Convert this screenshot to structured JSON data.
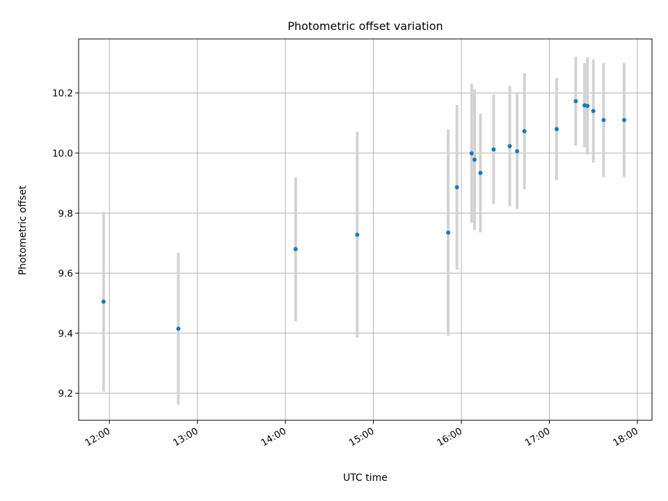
{
  "chart_data": {
    "type": "scatter",
    "title": "Photometric offset variation",
    "xlabel": "UTC time",
    "ylabel": "Photometric offset",
    "x_ticks": [
      "12:00",
      "13:00",
      "14:00",
      "15:00",
      "16:00",
      "17:00",
      "18:00"
    ],
    "y_ticks": [
      "9.2",
      "9.4",
      "9.6",
      "9.8",
      "10.0",
      "10.2"
    ],
    "xlim": [
      "11:39",
      "18:10"
    ],
    "ylim": [
      9.11,
      10.38
    ],
    "grid": true,
    "point_color": "#1f77b4",
    "errorbar_color": "#d3d3d3",
    "points": [
      {
        "x": "11:56",
        "y": 9.505,
        "err": 0.3
      },
      {
        "x": "12:47",
        "y": 9.415,
        "err": 0.253
      },
      {
        "x": "14:07",
        "y": 9.68,
        "err": 0.24
      },
      {
        "x": "14:49",
        "y": 9.728,
        "err": 0.343
      },
      {
        "x": "15:51",
        "y": 9.735,
        "err": 0.344
      },
      {
        "x": "15:57",
        "y": 9.886,
        "err": 0.274
      },
      {
        "x": "16:07",
        "y": 9.999,
        "err": 0.232
      },
      {
        "x": "16:09",
        "y": 9.978,
        "err": 0.234
      },
      {
        "x": "16:13",
        "y": 9.934,
        "err": 0.198
      },
      {
        "x": "16:22",
        "y": 10.012,
        "err": 0.182
      },
      {
        "x": "16:33",
        "y": 10.023,
        "err": 0.2
      },
      {
        "x": "16:38",
        "y": 10.006,
        "err": 0.193
      },
      {
        "x": "16:43",
        "y": 10.073,
        "err": 0.193
      },
      {
        "x": "17:05",
        "y": 10.08,
        "err": 0.17
      },
      {
        "x": "17:18",
        "y": 10.173,
        "err": 0.148
      },
      {
        "x": "17:24",
        "y": 10.159,
        "err": 0.14
      },
      {
        "x": "17:26",
        "y": 10.157,
        "err": 0.162
      },
      {
        "x": "17:30",
        "y": 10.14,
        "err": 0.172
      },
      {
        "x": "17:37",
        "y": 10.11,
        "err": 0.19
      },
      {
        "x": "17:51",
        "y": 10.11,
        "err": 0.19
      }
    ]
  }
}
